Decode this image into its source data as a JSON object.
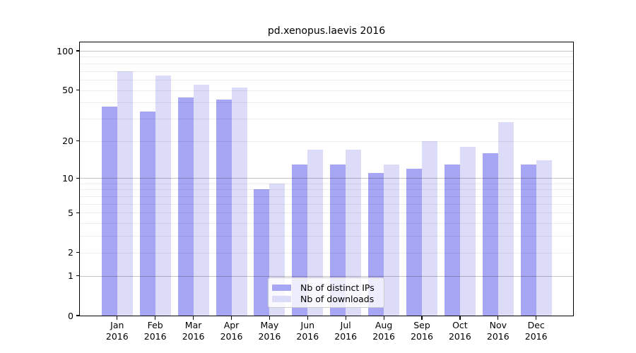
{
  "title": "pd.xenopus.laevis 2016",
  "legend": {
    "items": [
      {
        "label": "Nb of distinct IPs",
        "color": "#a6a6f4"
      },
      {
        "label": "Nb of downloads",
        "color": "#dcdcf8"
      }
    ]
  },
  "chart_data": {
    "type": "bar",
    "title": "pd.xenopus.laevis 2016",
    "categories": [
      "Jan 2016",
      "Feb 2016",
      "Mar 2016",
      "Apr 2016",
      "May 2016",
      "Jun 2016",
      "Jul 2016",
      "Aug 2016",
      "Sep 2016",
      "Oct 2016",
      "Nov 2016",
      "Dec 2016"
    ],
    "series": [
      {
        "name": "Nb of distinct IPs",
        "color": "#a6a6f4",
        "values": [
          37,
          34,
          44,
          42,
          8,
          13,
          13,
          11,
          12,
          13,
          16,
          13
        ]
      },
      {
        "name": "Nb of downloads",
        "color": "#dcdcf8",
        "values": [
          70,
          65,
          55,
          52,
          9,
          17,
          17,
          13,
          20,
          18,
          28,
          14
        ]
      }
    ],
    "yscale": "log1p",
    "ylim": [
      0,
      116
    ],
    "yticks": [
      0,
      1,
      2,
      5,
      10,
      20,
      50,
      100
    ],
    "grid_minor": [
      2,
      3,
      4,
      5,
      6,
      7,
      8,
      9,
      20,
      30,
      40,
      50,
      60,
      70,
      80,
      90
    ],
    "grid_major": [
      1,
      10,
      100
    ],
    "grid": true,
    "legend_position": "lower center"
  }
}
